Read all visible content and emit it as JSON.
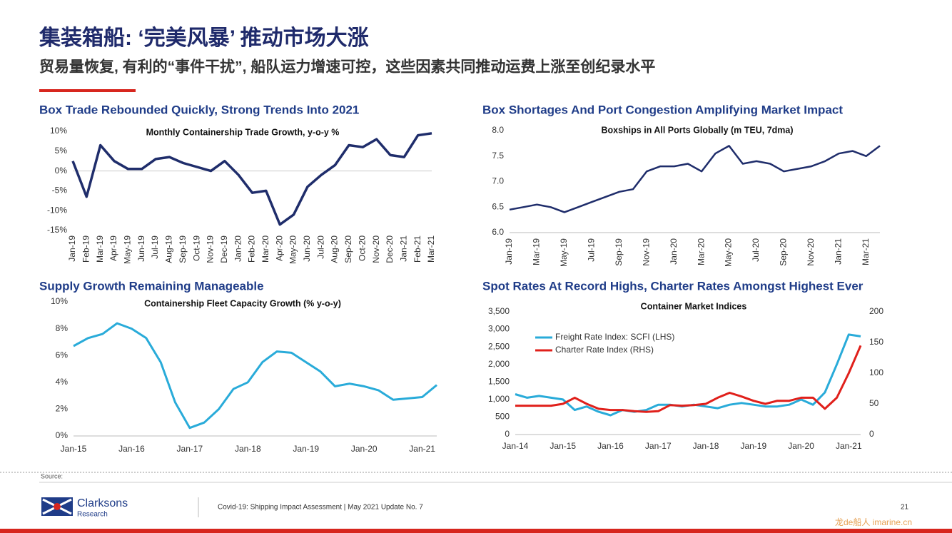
{
  "header": {
    "title": "集装箱船: ‘完美风暴’ 推动市场大涨",
    "subtitle": "贸易量恢复, 有利的“事件干扰”, 船队运力增速可控，这些因素共同推动运费上涨至创纪录水平"
  },
  "footer": {
    "source": "Source:",
    "brand": "Clarksons",
    "brand_sub": "Research",
    "text": "Covid-19: Shipping Impact Assessment | May 2021 Update No. 7",
    "page": "21",
    "watermark": "龙de船人 imarine.cn"
  },
  "chart_data": [
    {
      "type": "line",
      "title": "Box Trade Rebounded Quickly, Strong Trends Into 2021",
      "subtitle": "Monthly Containership Trade Growth, y-o-y %",
      "categories": [
        "Jan-19",
        "Feb-19",
        "Mar-19",
        "Apr-19",
        "May-19",
        "Jun-19",
        "Jul-19",
        "Aug-19",
        "Sep-19",
        "Oct-19",
        "Nov-19",
        "Dec-19",
        "Jan-20",
        "Feb-20",
        "Mar-20",
        "Apr-20",
        "May-20",
        "Jun-20",
        "Jul-20",
        "Aug-20",
        "Sep-20",
        "Oct-20",
        "Nov-20",
        "Dec-20",
        "Jan-21",
        "Feb-21",
        "Mar-21"
      ],
      "series": [
        {
          "name": "Monthly Containership Trade Growth",
          "color": "#1f2d6b",
          "values": [
            2.5,
            -6.5,
            6.5,
            2.5,
            0.5,
            0.5,
            3,
            3.5,
            2,
            1,
            0,
            2.5,
            -1,
            -5.5,
            -5,
            -13.5,
            -11,
            -4,
            -1,
            1.5,
            6.5,
            6,
            8,
            4,
            3.5,
            9,
            9.5
          ]
        }
      ],
      "ylim": [
        -15,
        10
      ],
      "yticks": [
        {
          "value": -15,
          "label": "-15%"
        },
        {
          "value": -10,
          "label": "-10%"
        },
        {
          "value": -5,
          "label": "-5%"
        },
        {
          "value": 0,
          "label": "0%"
        },
        {
          "value": 5,
          "label": "5%"
        },
        {
          "value": 10,
          "label": "10%"
        }
      ],
      "grid": false
    },
    {
      "type": "line",
      "title": "Box Shortages And Port Congestion Amplifying Market Impact",
      "subtitle": "Boxships in All Ports Globally (m TEU, 7dma)",
      "categories": [
        "Jan-19",
        null,
        "Mar-19",
        null,
        "May-19",
        null,
        "Jul-19",
        null,
        "Sep-19",
        null,
        "Nov-19",
        null,
        "Jan-20",
        null,
        "Mar-20",
        null,
        "May-20",
        null,
        "Jul-20",
        null,
        "Sep-20",
        null,
        "Nov-20",
        null,
        "Jan-21",
        null,
        "Mar-21",
        null
      ],
      "series": [
        {
          "name": "Boxships in All Ports",
          "color": "#1f2d6b",
          "values": [
            6.45,
            6.5,
            6.55,
            6.5,
            6.4,
            6.5,
            6.6,
            6.7,
            6.8,
            6.85,
            7.2,
            7.3,
            7.3,
            7.35,
            7.2,
            7.55,
            7.7,
            7.35,
            7.4,
            7.35,
            7.2,
            7.25,
            7.3,
            7.4,
            7.55,
            7.6,
            7.5,
            7.7
          ]
        }
      ],
      "ylim": [
        6,
        8
      ],
      "yticks": [
        {
          "value": 6,
          "label": "6.0"
        },
        6.5,
        {
          "value": 7,
          "label": "7.0"
        },
        7.5,
        {
          "value": 8,
          "label": "8.0"
        }
      ],
      "grid": false
    },
    {
      "type": "line",
      "title": "Supply Growth Remaining Manageable",
      "subtitle": "Containership Fleet Capacity Growth (% y-o-y)",
      "categories": [
        "Jan-15",
        null,
        null,
        null,
        "Jan-16",
        null,
        null,
        null,
        "Jan-17",
        null,
        null,
        null,
        "Jan-18",
        null,
        null,
        null,
        "Jan-19",
        null,
        null,
        null,
        "Jan-20",
        null,
        null,
        null,
        "Jan-21",
        null
      ],
      "series": [
        {
          "name": "Fleet Capacity Growth",
          "color": "#29abd9",
          "values": [
            6.7,
            7.3,
            7.6,
            8.4,
            8.0,
            7.3,
            5.5,
            2.5,
            0.6,
            1.0,
            2.0,
            3.5,
            4.0,
            5.5,
            6.3,
            6.2,
            5.5,
            4.8,
            3.7,
            3.9,
            3.7,
            3.4,
            2.7,
            2.8,
            2.9,
            3.8
          ]
        }
      ],
      "ylim": [
        0,
        10
      ],
      "yticks": [
        {
          "value": 0,
          "label": "0%"
        },
        {
          "value": 2,
          "label": "2%"
        },
        {
          "value": 4,
          "label": "4%"
        },
        {
          "value": 6,
          "label": "6%"
        },
        {
          "value": 8,
          "label": "8%"
        },
        {
          "value": 10,
          "label": "10%"
        }
      ],
      "grid": false
    },
    {
      "type": "line",
      "title": "Spot Rates At Record Highs, Charter Rates Amongst Highest Ever",
      "subtitle": "Container Market Indices",
      "categories": [
        "Jan-14",
        null,
        null,
        null,
        "Jan-15",
        null,
        null,
        null,
        "Jan-16",
        null,
        null,
        null,
        "Jan-17",
        null,
        null,
        null,
        "Jan-18",
        null,
        null,
        null,
        "Jan-19",
        null,
        null,
        null,
        "Jan-20",
        null,
        null,
        null,
        "Jan-21",
        null
      ],
      "series": [
        {
          "name": "Freight Rate Index: SCFI (LHS)",
          "color": "#29abd9",
          "values": [
            1150,
            1050,
            1100,
            1050,
            1000,
            700,
            800,
            650,
            550,
            700,
            650,
            700,
            850,
            850,
            800,
            850,
            800,
            750,
            850,
            900,
            850,
            800,
            800,
            850,
            1000,
            850,
            1200,
            2000,
            2850,
            2800
          ]
        },
        {
          "name": "Charter Rate Index (RHS)",
          "color": "#e0201b",
          "axis": "y2",
          "values": [
            47,
            47,
            47,
            47,
            50,
            60,
            50,
            42,
            40,
            40,
            38,
            37,
            38,
            48,
            47,
            48,
            50,
            60,
            68,
            62,
            55,
            50,
            55,
            55,
            60,
            60,
            42,
            60,
            100,
            145
          ]
        }
      ],
      "ylim": [
        0,
        3500
      ],
      "yticks": [
        0,
        500,
        {
          "value": 1000,
          "label": "1,000"
        },
        {
          "value": 1500,
          "label": "1,500"
        },
        {
          "value": 2000,
          "label": "2,000"
        },
        {
          "value": 2500,
          "label": "2,500"
        },
        {
          "value": 3000,
          "label": "3,000"
        },
        {
          "value": 3500,
          "label": "3,500"
        }
      ],
      "y2lim": [
        0,
        200
      ],
      "y2ticks": [
        0,
        50,
        100,
        150,
        200
      ],
      "legend": "upper left",
      "grid": false
    }
  ]
}
